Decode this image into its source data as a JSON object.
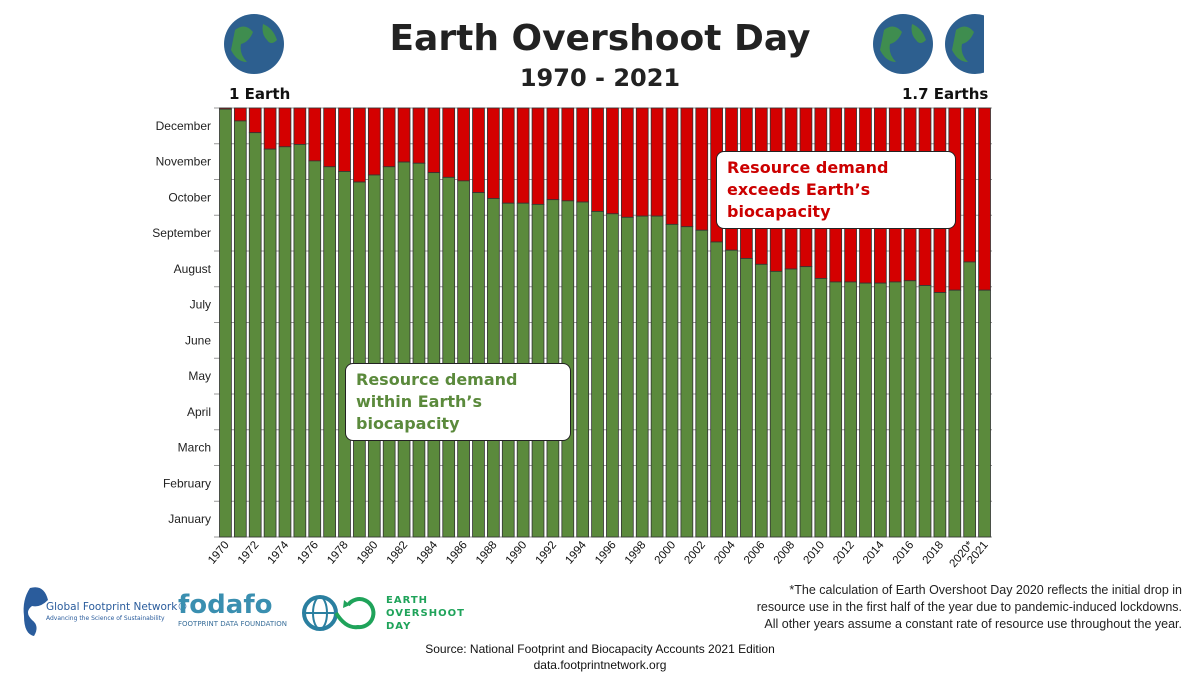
{
  "header": {
    "title": "Earth Overshoot Day",
    "subtitle": "1970 - 2021",
    "left_label": "1 Earth",
    "right_label": "1.7 Earths"
  },
  "callouts": {
    "exceeds": "Resource demand exceeds Earth’s biocapacity",
    "within": "Resource demand within Earth’s biocapacity"
  },
  "colors": {
    "within": "#5b8a3c",
    "exceeds": "#d40000",
    "exceeds_text": "#cc0000",
    "within_text": "#5b8a3c"
  },
  "chart_data": {
    "type": "bar",
    "title": "Earth Overshoot Day 1970 - 2021",
    "xlabel": "",
    "ylabel": "",
    "ylim": [
      0,
      365
    ],
    "y_unit": "day of year",
    "y_tick_labels": [
      "January",
      "February",
      "March",
      "April",
      "May",
      "June",
      "July",
      "August",
      "September",
      "October",
      "November",
      "December"
    ],
    "categories": [
      "1970",
      "1971",
      "1972",
      "1973",
      "1974",
      "1975",
      "1976",
      "1977",
      "1978",
      "1979",
      "1980",
      "1981",
      "1982",
      "1983",
      "1984",
      "1985",
      "1986",
      "1987",
      "1988",
      "1989",
      "1990",
      "1991",
      "1992",
      "1993",
      "1994",
      "1995",
      "1996",
      "1997",
      "1998",
      "1999",
      "2000",
      "2001",
      "2002",
      "2003",
      "2004",
      "2005",
      "2006",
      "2007",
      "2008",
      "2009",
      "2010",
      "2011",
      "2012",
      "2013",
      "2014",
      "2015",
      "2016",
      "2017",
      "2018",
      "2019",
      "2020*",
      "2021"
    ],
    "x_tick_labels": [
      "1970",
      "1972",
      "1974",
      "1976",
      "1978",
      "1980",
      "1982",
      "1984",
      "1986",
      "1988",
      "1990",
      "1992",
      "1994",
      "1996",
      "1998",
      "2000",
      "2002",
      "2004",
      "2006",
      "2008",
      "2010",
      "2012",
      "2014",
      "2016",
      "2018",
      "2020*",
      "2021"
    ],
    "series": [
      {
        "name": "Resource demand within Earth’s biocapacity",
        "values": [
          364,
          354,
          344,
          330,
          332,
          334,
          320,
          315,
          311,
          302,
          308,
          315,
          319,
          318,
          310,
          306,
          303,
          293,
          288,
          284,
          284,
          283,
          287,
          286,
          285,
          277,
          275,
          272,
          273,
          273,
          266,
          264,
          261,
          251,
          244,
          237,
          232,
          226,
          228,
          230,
          220,
          217,
          217,
          216,
          216,
          217,
          218,
          214,
          208,
          210,
          234,
          210
        ]
      },
      {
        "name": "Resource demand exceeds Earth’s biocapacity",
        "values": "remainder of year (365 - overshoot day)"
      }
    ]
  },
  "footnote": [
    "*The calculation of Earth Overshoot Day 2020 reflects the initial drop in",
    "resource use in the first half of the year due to pandemic-induced lockdowns.",
    "All other years assume a constant rate of resource use throughout the year."
  ],
  "source": [
    "Source: National Footprint and Biocapacity Accounts 2021 Edition",
    "data.footprintnetwork.org"
  ],
  "logos": {
    "gfn": "Global Footprint Network®",
    "gfn_tag": "Advancing the Science of Sustainability",
    "fodafo": "FODAFO",
    "fodafo_sub": "FOOTPRINT DATA FOUNDATION",
    "eod": [
      "EARTH",
      "OVERSHOOT",
      "DAY"
    ]
  }
}
